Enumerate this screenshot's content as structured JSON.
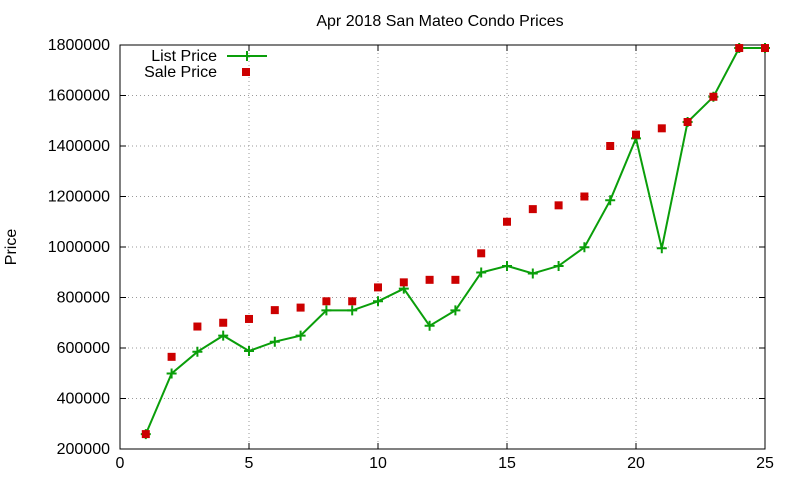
{
  "chart_data": {
    "type": "line",
    "title": "Apr 2018 San Mateo Condo Prices",
    "xlabel": "",
    "ylabel": "Price",
    "xlim": [
      0,
      25
    ],
    "ylim": [
      200000,
      1800000
    ],
    "x_ticks": [
      0,
      5,
      10,
      15,
      20,
      25
    ],
    "y_ticks": [
      200000,
      400000,
      600000,
      800000,
      1000000,
      1200000,
      1400000,
      1600000,
      1800000
    ],
    "grid": true,
    "legend_position": "top-left",
    "x": [
      1,
      2,
      3,
      4,
      5,
      6,
      7,
      8,
      9,
      10,
      11,
      12,
      13,
      14,
      15,
      16,
      17,
      18,
      19,
      20,
      21,
      22,
      23,
      24,
      25
    ],
    "series": [
      {
        "name": "List Price",
        "style": "line-with-plus-markers",
        "color": "#0a9e0a",
        "values": [
          259000,
          499000,
          585000,
          649000,
          588000,
          625000,
          649000,
          749000,
          749000,
          785000,
          835000,
          688000,
          749000,
          899000,
          925000,
          895000,
          925000,
          999000,
          1185000,
          1430000,
          995000,
          1495000,
          1595000,
          1788000,
          1788000
        ]
      },
      {
        "name": "Sale Price",
        "style": "square-markers",
        "color": "#cc0000",
        "values": [
          259000,
          565000,
          685000,
          700000,
          715000,
          750000,
          760000,
          785000,
          785000,
          840000,
          860000,
          870000,
          870000,
          975000,
          1100000,
          1150000,
          1165000,
          1200000,
          1400000,
          1445000,
          1470000,
          1495000,
          1595000,
          1788000,
          1788000
        ]
      }
    ]
  }
}
